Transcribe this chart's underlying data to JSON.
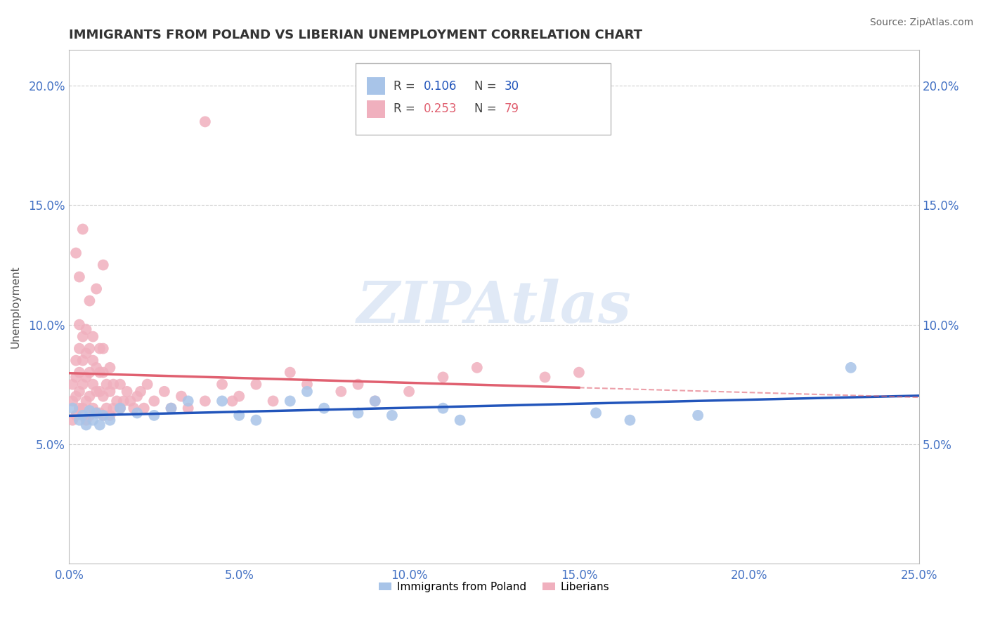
{
  "title": "IMMIGRANTS FROM POLAND VS LIBERIAN UNEMPLOYMENT CORRELATION CHART",
  "source": "Source: ZipAtlas.com",
  "ylabel": "Unemployment",
  "xlim": [
    0,
    0.25
  ],
  "ylim": [
    0.0,
    0.215
  ],
  "xticks": [
    0.0,
    0.05,
    0.1,
    0.15,
    0.2,
    0.25
  ],
  "yticks": [
    0.05,
    0.1,
    0.15,
    0.2
  ],
  "xticklabels": [
    "0.0%",
    "5.0%",
    "10.0%",
    "15.0%",
    "20.0%",
    "25.0%"
  ],
  "yticklabels": [
    "5.0%",
    "10.0%",
    "15.0%",
    "20.0%"
  ],
  "blue_color": "#a8c4e8",
  "pink_color": "#f0b0be",
  "blue_line_color": "#2255bb",
  "pink_line_color": "#e06070",
  "axis_color": "#4472c4",
  "grid_color": "#d0d0d0",
  "watermark": "ZIPAtlas",
  "blue_dots_x": [
    0.001,
    0.003,
    0.004,
    0.005,
    0.006,
    0.007,
    0.008,
    0.009,
    0.01,
    0.012,
    0.015,
    0.02,
    0.025,
    0.03,
    0.035,
    0.045,
    0.05,
    0.055,
    0.065,
    0.07,
    0.075,
    0.085,
    0.09,
    0.095,
    0.11,
    0.115,
    0.155,
    0.165,
    0.185,
    0.23
  ],
  "blue_dots_y": [
    0.065,
    0.06,
    0.062,
    0.058,
    0.064,
    0.06,
    0.063,
    0.058,
    0.062,
    0.06,
    0.065,
    0.063,
    0.062,
    0.065,
    0.068,
    0.068,
    0.062,
    0.06,
    0.068,
    0.072,
    0.065,
    0.063,
    0.068,
    0.062,
    0.065,
    0.06,
    0.063,
    0.06,
    0.062,
    0.082
  ],
  "pink_dots_x": [
    0.001,
    0.001,
    0.001,
    0.002,
    0.002,
    0.002,
    0.002,
    0.003,
    0.003,
    0.003,
    0.003,
    0.003,
    0.004,
    0.004,
    0.004,
    0.004,
    0.005,
    0.005,
    0.005,
    0.005,
    0.005,
    0.006,
    0.006,
    0.006,
    0.006,
    0.007,
    0.007,
    0.007,
    0.007,
    0.008,
    0.008,
    0.008,
    0.009,
    0.009,
    0.009,
    0.009,
    0.01,
    0.01,
    0.01,
    0.01,
    0.011,
    0.011,
    0.012,
    0.012,
    0.012,
    0.013,
    0.013,
    0.014,
    0.015,
    0.015,
    0.016,
    0.017,
    0.018,
    0.019,
    0.02,
    0.021,
    0.022,
    0.023,
    0.025,
    0.028,
    0.03,
    0.033,
    0.035,
    0.04,
    0.045,
    0.048,
    0.05,
    0.055,
    0.06,
    0.065,
    0.07,
    0.08,
    0.085,
    0.09,
    0.1,
    0.11,
    0.12,
    0.14,
    0.15
  ],
  "pink_dots_y": [
    0.06,
    0.068,
    0.075,
    0.062,
    0.07,
    0.078,
    0.085,
    0.065,
    0.072,
    0.08,
    0.09,
    0.1,
    0.065,
    0.075,
    0.085,
    0.095,
    0.06,
    0.068,
    0.078,
    0.088,
    0.098,
    0.062,
    0.07,
    0.08,
    0.09,
    0.065,
    0.075,
    0.085,
    0.095,
    0.063,
    0.072,
    0.082,
    0.063,
    0.072,
    0.08,
    0.09,
    0.062,
    0.07,
    0.08,
    0.09,
    0.065,
    0.075,
    0.062,
    0.072,
    0.082,
    0.065,
    0.075,
    0.068,
    0.065,
    0.075,
    0.068,
    0.072,
    0.068,
    0.065,
    0.07,
    0.072,
    0.065,
    0.075,
    0.068,
    0.072,
    0.065,
    0.07,
    0.065,
    0.068,
    0.075,
    0.068,
    0.07,
    0.075,
    0.068,
    0.08,
    0.075,
    0.072,
    0.075,
    0.068,
    0.072,
    0.078,
    0.082,
    0.078,
    0.08
  ],
  "pink_extra_high_x": [
    0.002,
    0.003,
    0.004,
    0.006,
    0.008,
    0.01
  ],
  "pink_extra_high_y": [
    0.13,
    0.12,
    0.14,
    0.11,
    0.115,
    0.125
  ],
  "pink_outlier_x": [
    0.04
  ],
  "pink_outlier_y": [
    0.185
  ]
}
